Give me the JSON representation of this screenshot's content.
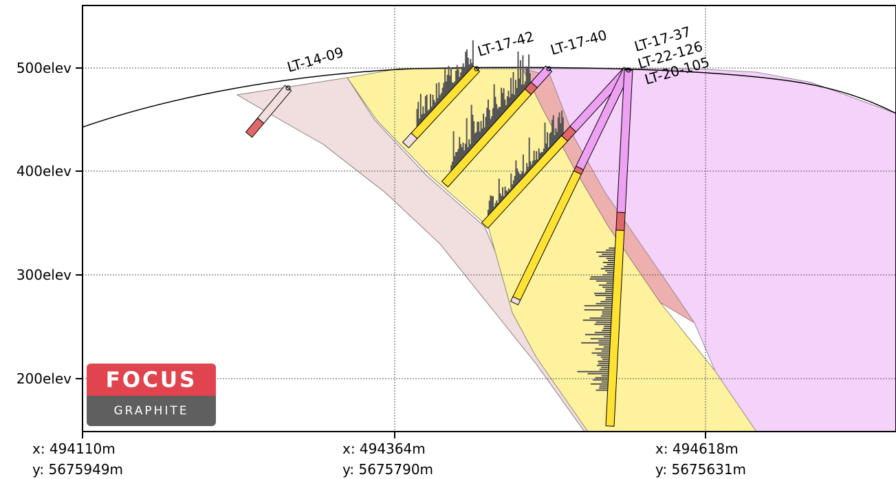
{
  "section": {
    "elevation_labels": [
      "500elev",
      "400elev",
      "300elev",
      "200elev"
    ],
    "coordinate_labels": [
      {
        "x": "x: 494110m",
        "y": "y: 5675949m"
      },
      {
        "x": "x: 494364m",
        "y": "y: 5675790m"
      },
      {
        "x": "x: 494618m",
        "y": "y: 5675631m"
      }
    ],
    "drillholes": [
      {
        "name": "LT-14-09"
      },
      {
        "name": "LT-17-42"
      },
      {
        "name": "LT-17-40"
      },
      {
        "name": "LT-17-37"
      },
      {
        "name": "LT-22-126"
      },
      {
        "name": "LT-20-105"
      }
    ],
    "colors": {
      "host_rock": "#f1dfdf",
      "mineralized_zone": "#fff29e",
      "contact_unit": "#eeb0ae",
      "footwall_unit": "#f4d2fa",
      "interval_yellow": "#ffe234",
      "interval_red": "#e06868",
      "interval_pink": "#eea0f2",
      "histogram": "#555555"
    }
  },
  "logo": {
    "brand": "FOCUS",
    "sub": "GRAPHITE"
  }
}
